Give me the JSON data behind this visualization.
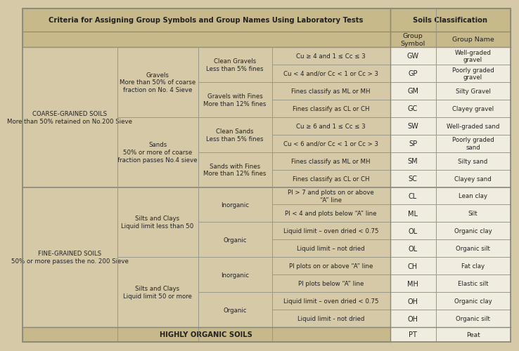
{
  "title": "Criteria for Assigning Group Symbols and Group Names Using Laboratory Tests",
  "header_soils_class": "Soils Classification",
  "header_group_symbol": "Group\nSymbol",
  "header_group_name": "Group Name",
  "bg_color": "#d6c9a8",
  "header_bg": "#c8b98a",
  "cell_bg": "#e8e0ce",
  "white_bg": "#f0ece0",
  "border_color": "#999988",
  "thick_border": "#888877",
  "text_color": "#222222",
  "row_defs": [
    {
      "c1": "COARSE-GRAINED SOILS\nMore than 50% retained on No.200 Sieve",
      "c1s": 8,
      "c2": "Gravels\nMore than 50% of coarse\nfraction on No. 4 Sieve",
      "c2s": 4,
      "c3": "Clean Gravels\nLess than 5% fines",
      "c3s": 2,
      "c4": "Cu ≥ 4 and 1 ≤ Cc ≤ 3",
      "sym": "GW",
      "name": "Well-graded\ngravel"
    },
    {
      "c4": "Cu < 4 and/or Cc < 1 or Cc > 3",
      "sym": "GP",
      "name": "Poorly graded\ngravel"
    },
    {
      "c3": "Gravels with Fines\nMore than 12% fines",
      "c3s": 2,
      "c4": "Fines classify as ML or MH",
      "sym": "GM",
      "name": "Silty Gravel"
    },
    {
      "c4": "Fines classify as CL or CH",
      "sym": "GC",
      "name": "Clayey gravel"
    },
    {
      "c2": "Sands\n50% or more of coarse\nfraction passes No.4 sieve",
      "c2s": 4,
      "c3": "Clean Sands\nLess than 5% fines",
      "c3s": 2,
      "c4": "Cu ≥ 6 and 1 ≤ Cc ≤ 3",
      "sym": "SW",
      "name": "Well-graded sand"
    },
    {
      "c4": "Cu < 6 and/or Cc < 1 or Cc > 3",
      "sym": "SP",
      "name": "Poorly graded\nsand"
    },
    {
      "c3": "Sands with Fines\nMore than 12% fines",
      "c3s": 2,
      "c4": "Fines classify as ML or MH",
      "sym": "SM",
      "name": "Silty sand"
    },
    {
      "c4": "Fines classify as CL or CH",
      "sym": "SC",
      "name": "Clayey sand"
    },
    {
      "c1": "FINE-GRAINED SOILS\n50% or more passes the no. 200 Sieve",
      "c1s": 8,
      "c2": "Silts and Clays\nLiquid limit less than 50",
      "c2s": 4,
      "c3": "Inorganic",
      "c3s": 2,
      "c4": "PI > 7 and plots on or above\n“A” line",
      "sym": "CL",
      "name": "Lean clay"
    },
    {
      "c4": "PI < 4 and plots below “A” line",
      "sym": "ML",
      "name": "Silt"
    },
    {
      "c3": "Organic",
      "c3s": 2,
      "c4": "Liquid limit – oven dried < 0.75",
      "sym": "OL",
      "name": "Organic clay"
    },
    {
      "c4": "Liquid limit – not dried",
      "sym": "OL",
      "name": "Organic silt"
    },
    {
      "c2": "Silts and Clays\nLiquid limit 50 or more",
      "c2s": 4,
      "c3": "Inorganic",
      "c3s": 2,
      "c4": "PI plots on or above “A” line",
      "sym": "CH",
      "name": "Fat clay"
    },
    {
      "c4": "PI plots below “A” line",
      "sym": "MH",
      "name": "Elastic silt"
    },
    {
      "c3": "Organic",
      "c3s": 2,
      "c4": "Liquid limit – oven dried < 0.75",
      "sym": "OH",
      "name": "Organic clay"
    },
    {
      "c4": "Liquid limit - not dried",
      "sym": "OH",
      "name": "Organic silt"
    }
  ]
}
